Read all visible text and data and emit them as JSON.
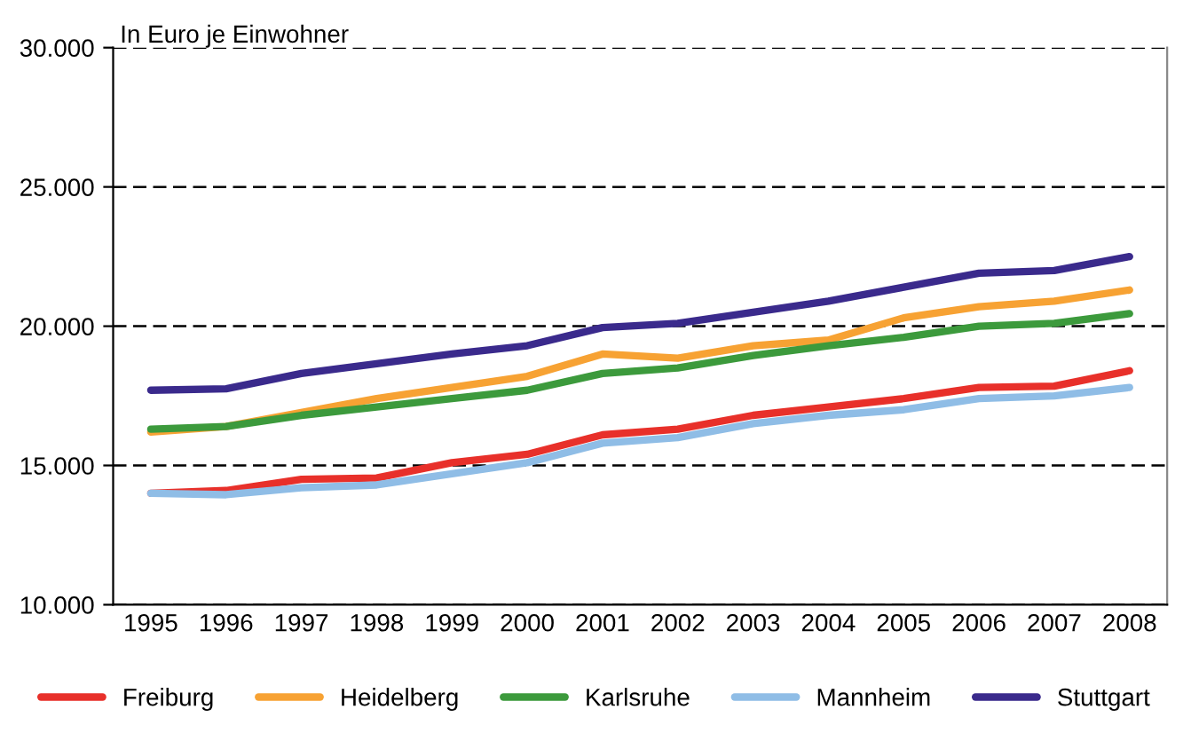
{
  "chart_data": {
    "type": "line",
    "ylabel": "In Euro je Einwohner",
    "categories": [
      "1995",
      "1996",
      "1997",
      "1998",
      "1999",
      "2000",
      "2001",
      "2002",
      "2003",
      "2004",
      "2005",
      "2006",
      "2007",
      "2008"
    ],
    "series": [
      {
        "name": "Freiburg",
        "color": "#e8302a",
        "values": [
          14000,
          14100,
          14500,
          14550,
          15100,
          15400,
          16100,
          16300,
          16800,
          17100,
          17400,
          17800,
          17850,
          18400
        ]
      },
      {
        "name": "Heidelberg",
        "color": "#f7a233",
        "values": [
          16200,
          16400,
          16900,
          17400,
          17800,
          18200,
          19000,
          18850,
          19300,
          19500,
          20300,
          20700,
          20900,
          21300
        ]
      },
      {
        "name": "Karlsruhe",
        "color": "#3c9a3c",
        "values": [
          16300,
          16400,
          16800,
          17100,
          17400,
          17700,
          18300,
          18500,
          18950,
          19300,
          19600,
          20000,
          20100,
          20450
        ]
      },
      {
        "name": "Mannheim",
        "color": "#8fbde6",
        "values": [
          14000,
          13950,
          14200,
          14300,
          14700,
          15100,
          15800,
          16000,
          16500,
          16800,
          17000,
          17400,
          17500,
          17800
        ]
      },
      {
        "name": "Stuttgart",
        "color": "#3a2a8c",
        "values": [
          17700,
          17750,
          18300,
          18650,
          19000,
          19300,
          19950,
          20100,
          20500,
          20900,
          21400,
          21900,
          22000,
          22500
        ]
      }
    ],
    "ylim": [
      10000,
      30000
    ],
    "yticks": [
      {
        "value": 10000,
        "label": "10.000"
      },
      {
        "value": 15000,
        "label": "15.000"
      },
      {
        "value": 20000,
        "label": "20.000"
      },
      {
        "value": 25000,
        "label": "25.000"
      },
      {
        "value": 30000,
        "label": "30.000"
      }
    ],
    "grid": "y",
    "legend": "bottom",
    "line_style": "solid",
    "marker": "none"
  }
}
